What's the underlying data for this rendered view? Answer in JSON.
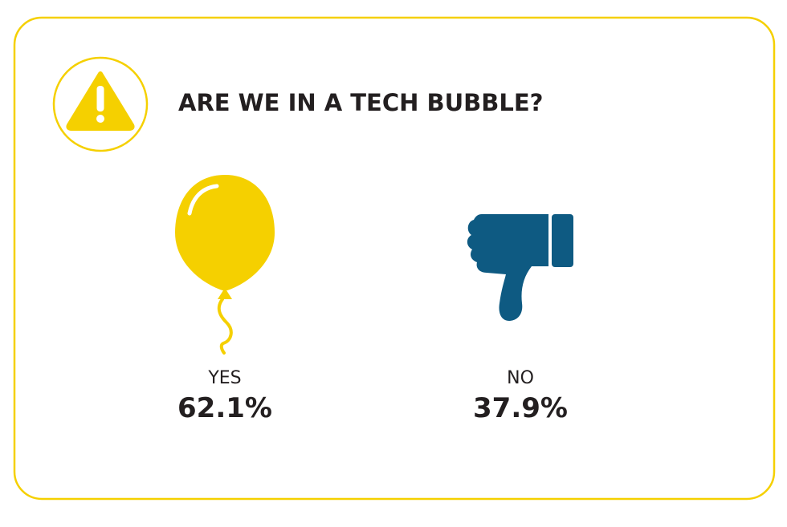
{
  "title": "ARE WE IN A TECH BUBBLE?",
  "options": [
    {
      "label": "YES",
      "value": "62.1%"
    },
    {
      "label": "NO",
      "value": "37.9%"
    }
  ]
}
